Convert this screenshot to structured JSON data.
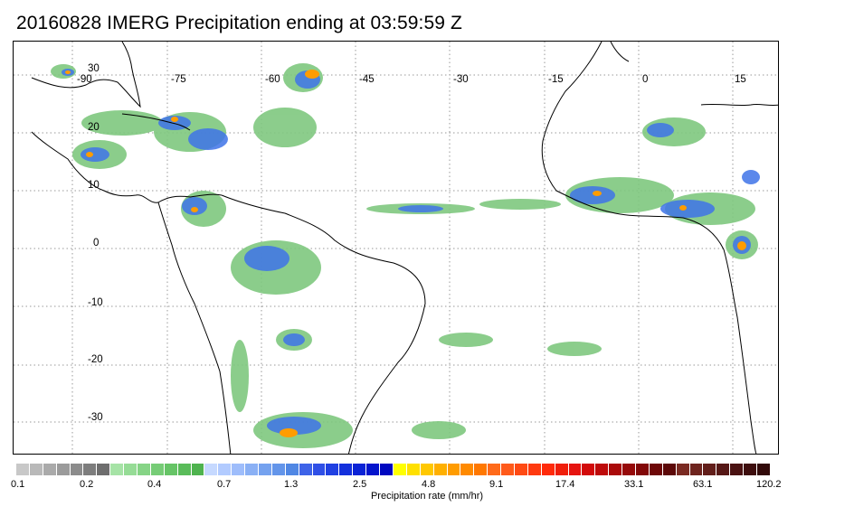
{
  "title": "20160828 IMERG Precipitation ending at 03:59:59 Z",
  "map": {
    "lon_labels": [
      "-90",
      "-75",
      "-60",
      "-45",
      "-30",
      "-15",
      "0",
      "15"
    ],
    "lat_labels": [
      "30",
      "20",
      "10",
      "0",
      "-10",
      "-20",
      "-30"
    ],
    "grid_style": "dotted",
    "coastline_color": "#000000"
  },
  "colorbar": {
    "title": "Precipitation rate (mm/hr)",
    "tick_labels": [
      "0.1",
      "0.2",
      "0.4",
      "0.7",
      "1.3",
      "2.5",
      "4.8",
      "9.1",
      "17.4",
      "33.1",
      "63.1",
      "120.2"
    ],
    "colors": [
      "#c8c8c8",
      "#b9b9b9",
      "#aaaaaa",
      "#9b9b9b",
      "#8c8c8c",
      "#7d7d7d",
      "#6e6e6e",
      "#a6e3a6",
      "#96dc96",
      "#86d486",
      "#76cc76",
      "#66c466",
      "#5abc5a",
      "#4fb34f",
      "#c6d9ff",
      "#b2cbff",
      "#9ebdfb",
      "#8ab0f5",
      "#75a2ef",
      "#6395ea",
      "#5087e4",
      "#3e63e8",
      "#2f4fe6",
      "#2040e2",
      "#1430dc",
      "#0a22d6",
      "#0314cc",
      "#0008c0",
      "#ffff00",
      "#ffe000",
      "#ffc800",
      "#ffb000",
      "#ff9c00",
      "#ff8a00",
      "#ff7800",
      "#ff6a1a",
      "#ff5a1a",
      "#ff4a14",
      "#ff3a10",
      "#ff2a0a",
      "#f01e0a",
      "#e61410",
      "#d20a0a",
      "#be0a0a",
      "#aa0a0a",
      "#960a0a",
      "#820808",
      "#6e0808",
      "#5c0808",
      "#7a2a22",
      "#6e241e",
      "#621e1a",
      "#561816",
      "#4a1212",
      "#3e0e0e",
      "#320a0a"
    ]
  }
}
